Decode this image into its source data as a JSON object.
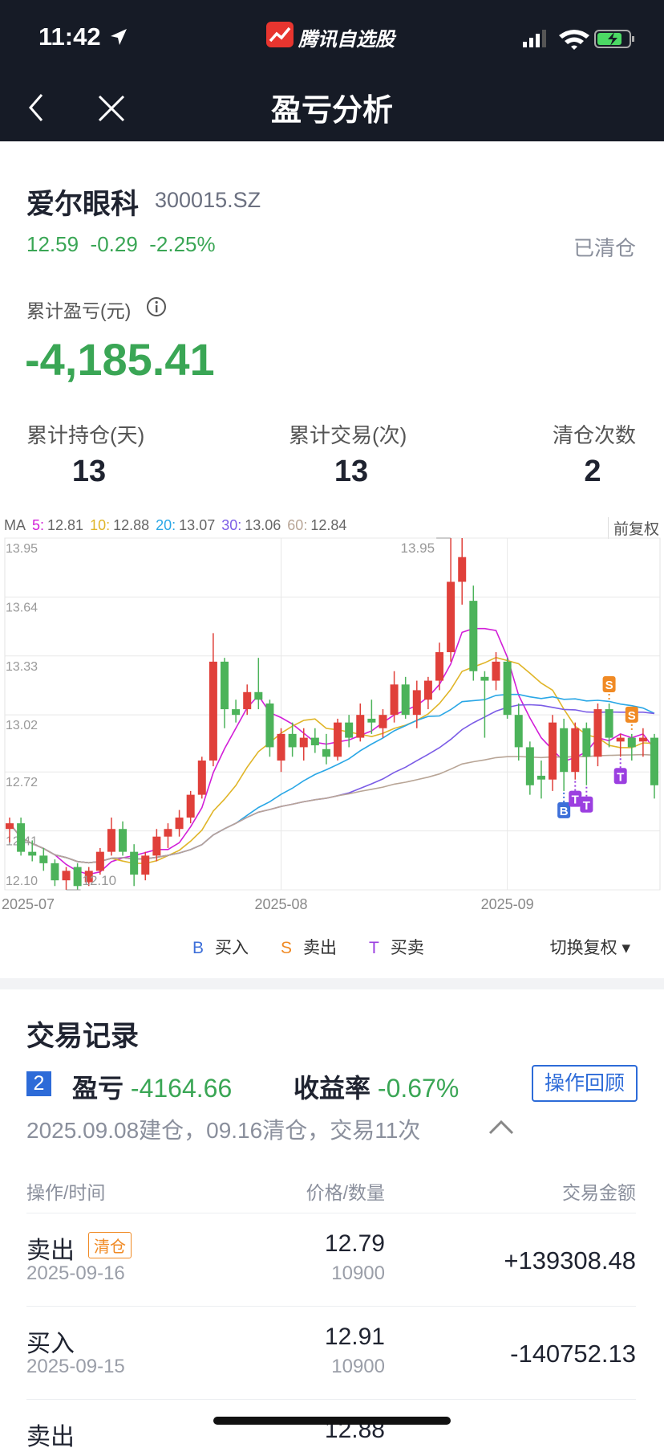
{
  "status_bar": {
    "time": "11:42",
    "app": "腾讯自选股"
  },
  "nav": {
    "title": "盈亏分析"
  },
  "stock": {
    "name": "爱尔眼科",
    "code": "300015.SZ",
    "price": 12.59,
    "change": -0.29,
    "change_pct": "-2.25%",
    "status": "已清仓"
  },
  "summary": {
    "pnl_label": "累计盈亏(元)",
    "pnl": "-4,185.41",
    "stats": [
      {
        "label": "累计持仓(天)",
        "value": 13
      },
      {
        "label": "累计交易(次)",
        "value": 13
      },
      {
        "label": "清仓次数",
        "value": 2
      }
    ]
  },
  "chart_data": {
    "type": "candlestick",
    "ma_label": "MA",
    "adjust": "前复权",
    "ma": [
      {
        "name": "5:",
        "window": 5,
        "value": 12.81,
        "color": "#d21fd8"
      },
      {
        "name": "10:",
        "window": 10,
        "value": 12.88,
        "color": "#e0b528"
      },
      {
        "name": "20:",
        "window": 20,
        "value": 13.07,
        "color": "#2aa7e6"
      },
      {
        "name": "30:",
        "window": 30,
        "value": 13.06,
        "color": "#7b5ce6"
      },
      {
        "name": "60:",
        "window": 60,
        "value": 12.84,
        "color": "#b8a596"
      }
    ],
    "ylim": [
      12.1,
      13.95
    ],
    "yticks": [
      13.95,
      13.64,
      13.33,
      13.02,
      12.72,
      12.41,
      {
        "value": 12.1,
        "label": "12.10"
      }
    ],
    "grid": true,
    "up_color": "#e0403a",
    "down_color": "#4cb35a",
    "high_label": 13.95,
    "low_label": {
      "value": 12.1,
      "label": "12.10"
    },
    "categories": [
      "2025-07",
      null,
      null,
      null,
      null,
      null,
      null,
      null,
      null,
      null,
      null,
      null,
      null,
      null,
      null,
      null,
      null,
      null,
      null,
      null,
      null,
      null,
      null,
      null,
      "2025-08",
      null,
      null,
      null,
      null,
      null,
      null,
      null,
      null,
      null,
      null,
      null,
      null,
      null,
      null,
      null,
      null,
      null,
      null,
      null,
      "2025-09",
      null,
      null,
      null,
      null,
      null,
      null,
      null,
      null,
      null,
      null,
      null,
      null,
      null
    ],
    "candles": [
      [
        12.42,
        12.48,
        12.35,
        12.45
      ],
      [
        12.45,
        12.48,
        12.28,
        12.3
      ],
      [
        12.3,
        12.36,
        12.25,
        12.28
      ],
      [
        12.28,
        12.32,
        12.2,
        12.24
      ],
      [
        12.24,
        12.26,
        12.12,
        12.15
      ],
      [
        12.15,
        12.22,
        12.1,
        12.2
      ],
      [
        12.22,
        12.24,
        12.1,
        12.12
      ],
      [
        12.14,
        12.22,
        12.12,
        12.2
      ],
      [
        12.2,
        12.32,
        12.18,
        12.3
      ],
      [
        12.3,
        12.48,
        12.28,
        12.42
      ],
      [
        12.42,
        12.46,
        12.28,
        12.3
      ],
      [
        12.3,
        12.34,
        12.12,
        12.18
      ],
      [
        12.18,
        12.3,
        12.15,
        12.28
      ],
      [
        12.28,
        12.42,
        12.25,
        12.38
      ],
      [
        12.38,
        12.45,
        12.32,
        12.42
      ],
      [
        12.42,
        12.52,
        12.38,
        12.48
      ],
      [
        12.48,
        12.62,
        12.45,
        12.6
      ],
      [
        12.6,
        12.8,
        12.58,
        12.78
      ],
      [
        12.78,
        13.45,
        12.75,
        13.3
      ],
      [
        13.3,
        13.32,
        12.95,
        13.05
      ],
      [
        13.05,
        13.1,
        12.98,
        13.02
      ],
      [
        13.05,
        13.18,
        13.02,
        13.14
      ],
      [
        13.14,
        13.32,
        13.05,
        13.1
      ],
      [
        13.08,
        13.1,
        12.8,
        12.85
      ],
      [
        12.78,
        12.95,
        12.72,
        12.92
      ],
      [
        12.92,
        12.98,
        12.8,
        12.85
      ],
      [
        12.85,
        12.95,
        12.78,
        12.9
      ],
      [
        12.9,
        12.95,
        12.82,
        12.86
      ],
      [
        12.84,
        12.92,
        12.76,
        12.8
      ],
      [
        12.8,
        13.0,
        12.78,
        12.98
      ],
      [
        12.98,
        13.02,
        12.85,
        12.9
      ],
      [
        12.9,
        13.08,
        12.88,
        13.02
      ],
      [
        13.0,
        13.1,
        12.92,
        12.98
      ],
      [
        12.95,
        13.05,
        12.9,
        13.02
      ],
      [
        13.02,
        13.25,
        12.98,
        13.18
      ],
      [
        13.18,
        13.22,
        13.0,
        13.02
      ],
      [
        13.02,
        13.2,
        12.95,
        13.15
      ],
      [
        13.1,
        13.22,
        13.05,
        13.2
      ],
      [
        13.2,
        13.4,
        13.15,
        13.35
      ],
      [
        13.35,
        13.95,
        13.3,
        13.72
      ],
      [
        13.72,
        13.95,
        13.6,
        13.85
      ],
      [
        13.62,
        13.7,
        13.2,
        13.25
      ],
      [
        13.22,
        13.25,
        12.9,
        13.2
      ],
      [
        13.2,
        13.35,
        13.15,
        13.3
      ],
      [
        13.3,
        13.32,
        13.0,
        13.02
      ],
      [
        13.02,
        13.08,
        12.78,
        12.85
      ],
      [
        12.85,
        12.88,
        12.6,
        12.65
      ],
      [
        12.7,
        12.78,
        12.58,
        12.68
      ],
      [
        12.68,
        13.02,
        12.62,
        12.98
      ],
      [
        12.95,
        13.0,
        12.62,
        12.72
      ],
      [
        12.72,
        12.98,
        12.68,
        12.95
      ],
      [
        12.95,
        12.98,
        12.65,
        12.8
      ],
      [
        12.8,
        13.08,
        12.75,
        13.05
      ],
      [
        13.05,
        13.08,
        12.85,
        12.9
      ],
      [
        12.88,
        12.92,
        12.8,
        12.9
      ],
      [
        12.9,
        12.92,
        12.78,
        12.85
      ],
      [
        12.88,
        12.95,
        12.8,
        12.9
      ],
      [
        12.9,
        12.92,
        12.58,
        12.65
      ]
    ],
    "trade_marks": [
      null,
      null,
      null,
      null,
      null,
      null,
      null,
      null,
      null,
      null,
      null,
      null,
      null,
      null,
      null,
      null,
      null,
      null,
      null,
      null,
      null,
      null,
      null,
      null,
      null,
      null,
      null,
      null,
      null,
      null,
      null,
      null,
      null,
      null,
      null,
      null,
      null,
      null,
      null,
      null,
      null,
      null,
      null,
      null,
      null,
      null,
      null,
      null,
      null,
      "B",
      "T",
      "T",
      null,
      "S",
      "T",
      "S",
      null,
      null
    ]
  },
  "legend": [
    {
      "symbol": "B",
      "label": "买入",
      "color": "#3d6fd9"
    },
    {
      "symbol": "S",
      "label": "卖出",
      "color": "#f08a24"
    },
    {
      "symbol": "T",
      "label": "买卖",
      "color": "#9b3fe0"
    }
  ],
  "switch": "切换复权",
  "records": {
    "title": "交易记录",
    "round": 2,
    "pnl_label": "盈亏",
    "pnl": -4164.66,
    "return_label": "收益率",
    "return": "-0.67%",
    "button": "操作回顾",
    "summary": "2025.09.08建仓，09.16清仓，交易11次",
    "headers": [
      "操作/时间",
      "价格/数量",
      "交易金额"
    ],
    "rows": [
      {
        "op": "卖出",
        "tag": "清仓",
        "date": "2025-09-16",
        "price": 12.79,
        "qty": 10900,
        "amount": "+139308.48"
      },
      {
        "op": "买入",
        "date": "2025-09-15",
        "price": 12.91,
        "qty": 10900,
        "amount": "-140752.13"
      },
      {
        "op": "卖出",
        "price": 12.88
      }
    ]
  }
}
